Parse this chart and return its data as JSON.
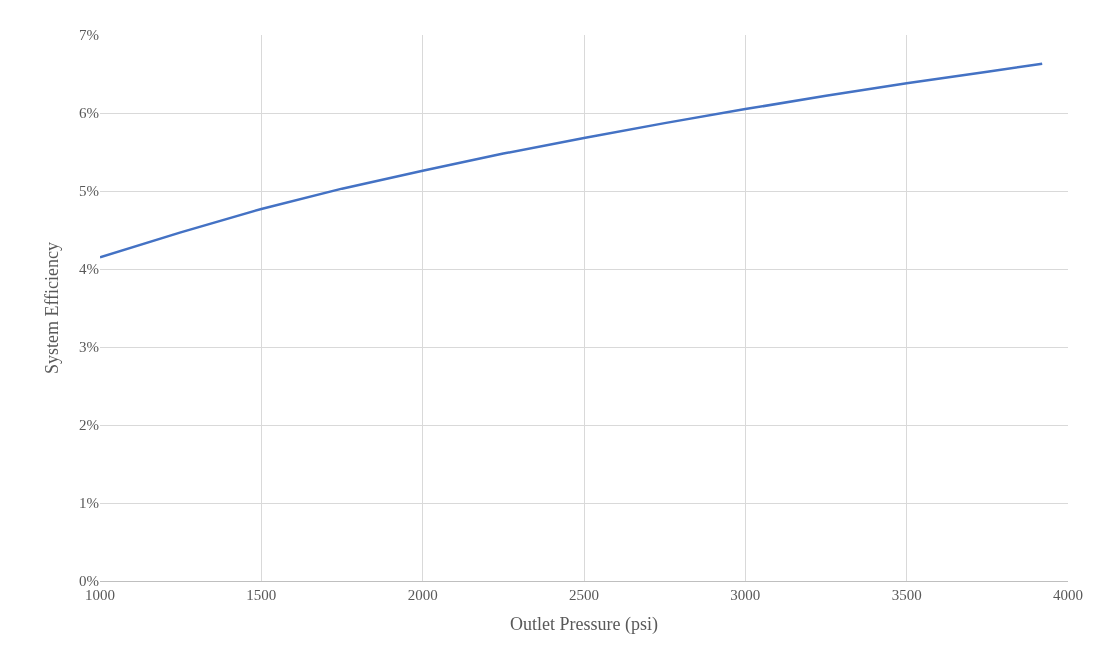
{
  "chart_data": {
    "type": "line",
    "xlabel": "Outlet Pressure (psi)",
    "ylabel": "System Efficiency",
    "x": [
      1000,
      1250,
      1500,
      1750,
      2000,
      2250,
      2500,
      2750,
      3000,
      3250,
      3500,
      3750,
      3920
    ],
    "series": [
      {
        "color": "#4472c4",
        "values": [
          4.15,
          4.47,
          4.77,
          5.03,
          5.26,
          5.48,
          5.68,
          5.87,
          6.05,
          6.22,
          6.38,
          6.53,
          6.63
        ]
      }
    ],
    "xlim": [
      1000,
      4000
    ],
    "xticks": [
      1000,
      1500,
      2000,
      2500,
      3000,
      3500,
      4000
    ],
    "ylim": [
      0,
      7
    ],
    "yticks": [
      {
        "value": 0,
        "label": "0%"
      },
      {
        "value": 1,
        "label": "1%"
      },
      {
        "value": 2,
        "label": "2%"
      },
      {
        "value": 3,
        "label": "3%"
      },
      {
        "value": 4,
        "label": "4%"
      },
      {
        "value": 5,
        "label": "5%"
      },
      {
        "value": 6,
        "label": "6%"
      },
      {
        "value": 7,
        "label": "7%"
      }
    ],
    "grid": true,
    "marker": "none",
    "line_style": "solid"
  }
}
